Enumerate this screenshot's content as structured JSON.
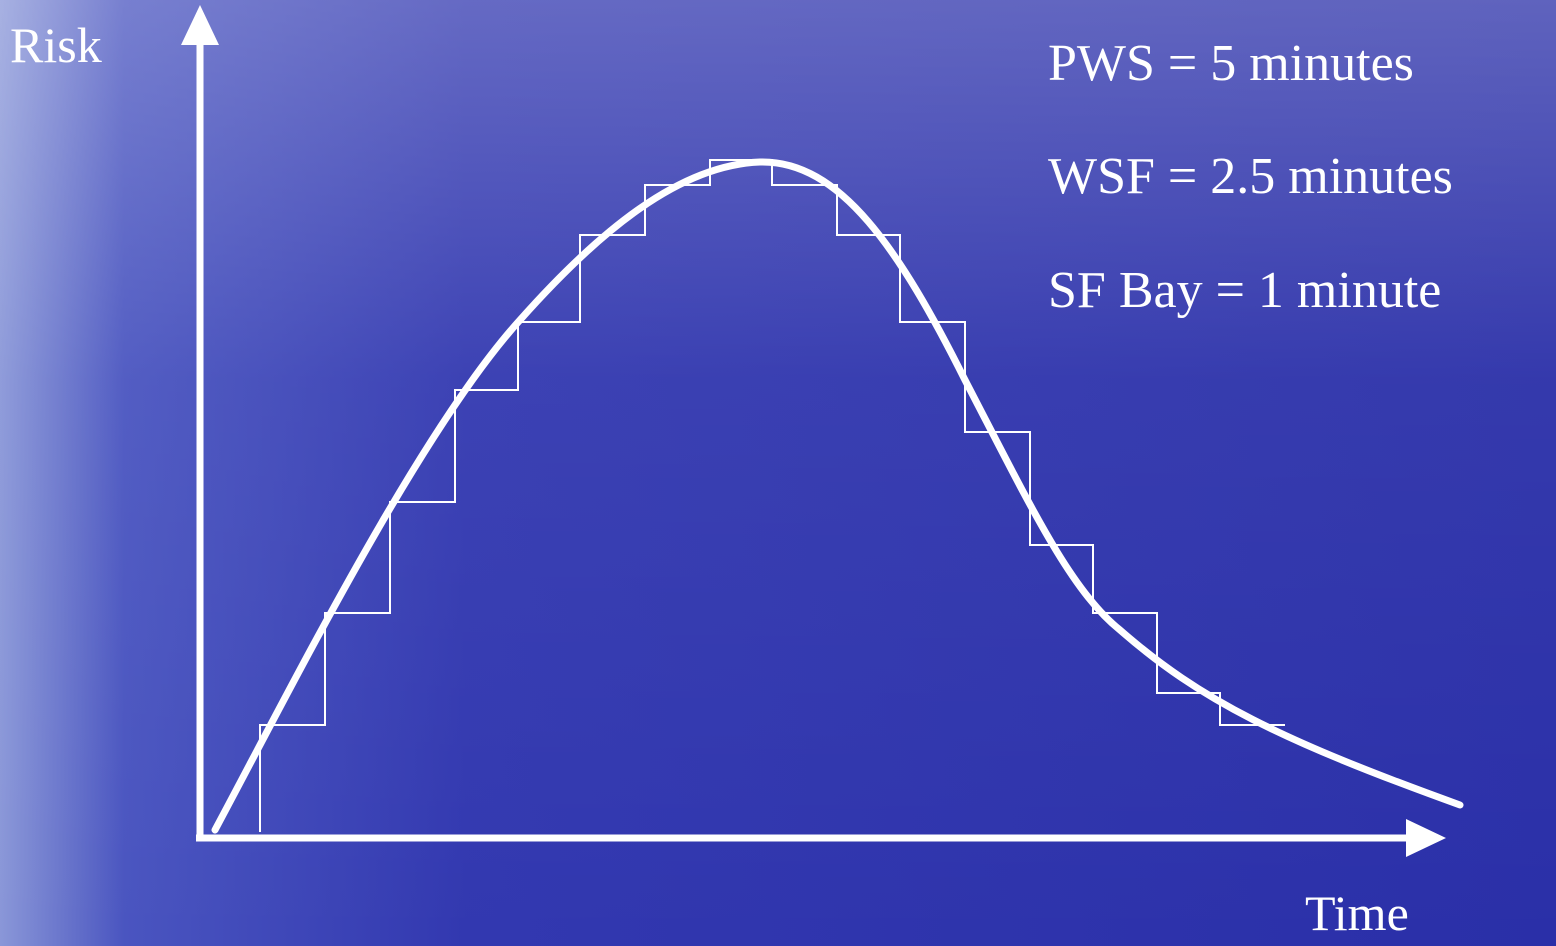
{
  "axes": {
    "y_label": "Risk",
    "x_label": "Time"
  },
  "annotations": [
    "PWS = 5 minutes",
    "WSF = 2.5 minutes",
    "SF Bay = 1 minute"
  ]
}
